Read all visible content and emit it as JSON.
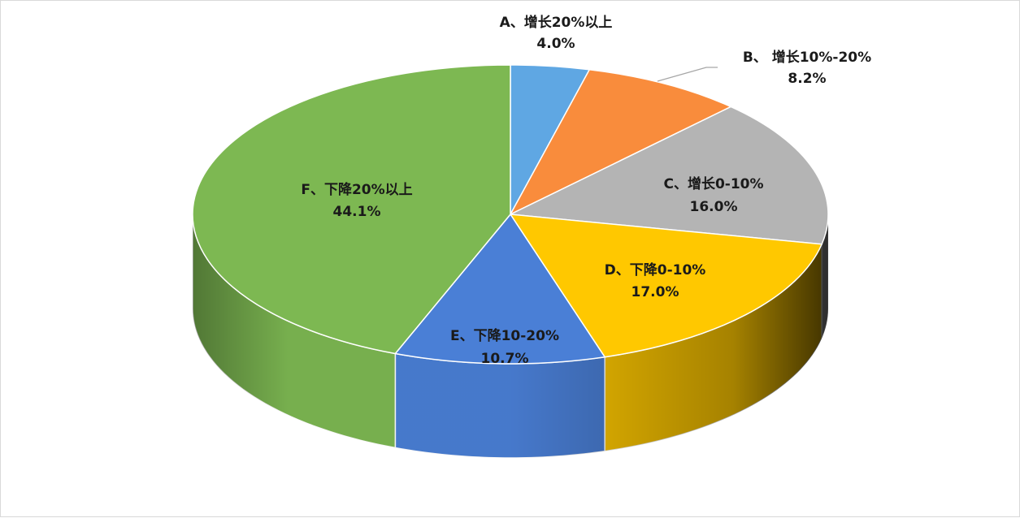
{
  "chart_data": {
    "type": "pie",
    "title": "",
    "style": "3d-exploded-none",
    "slices": [
      {
        "category": "A、增长20%以上",
        "value": 4.0,
        "label": "4.0%",
        "color": "#5fa7e3"
      },
      {
        "category": "B、 增长10%-20%",
        "value": 8.2,
        "label": "8.2%",
        "color": "#f98c3c"
      },
      {
        "category": "C、增长0-10%",
        "value": 16.0,
        "label": "16.0%",
        "color": "#b4b4b4"
      },
      {
        "category": "D、下降0-10%",
        "value": 17.0,
        "label": "17.0%",
        "color": "#ffc800"
      },
      {
        "category": "E、下降10-20%",
        "value": 10.7,
        "label": "10.7%",
        "color": "#4a7fd6"
      },
      {
        "category": "F、下降20%以上",
        "value": 44.1,
        "label": "44.1%",
        "color": "#7db852"
      }
    ],
    "legend": "none",
    "data_labels": "category-and-percent"
  }
}
